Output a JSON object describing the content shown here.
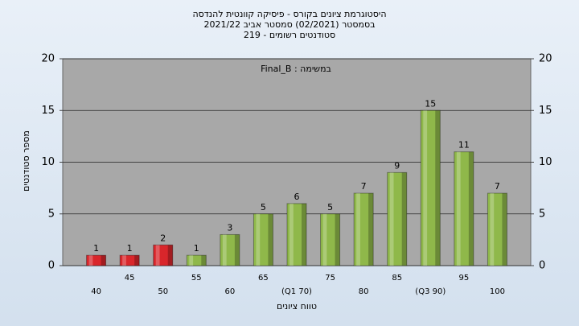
{
  "chart_data": {
    "type": "bar",
    "title": [
      "היסטוגרמת ציונים בקורס - פיסיקה קוונטית להנדסה",
      "בסמסטר  (02/2021)  סמסטר אביב 2021/22",
      "סטודנטים רשומים - 219"
    ],
    "annotation": "במשימה : Final_B",
    "x_label": "טווח ציונים",
    "y_label": "מספר סטודנטים",
    "categories": [
      "40",
      "45",
      "50",
      "55",
      "60",
      "65",
      "(Q1 70)",
      "75",
      "80",
      "85",
      "(Q3 90)",
      "95",
      "100"
    ],
    "values": [
      1,
      1,
      2,
      1,
      3,
      5,
      6,
      5,
      7,
      9,
      15,
      11,
      7
    ],
    "colors": [
      "#d9262b",
      "#d9262b",
      "#d9262b",
      "#8fb84a",
      "#8fb84a",
      "#8fb84a",
      "#8fb84a",
      "#8fb84a",
      "#8fb84a",
      "#8fb84a",
      "#8fb84a",
      "#8fb84a",
      "#8fb84a"
    ],
    "ylim": [
      0,
      20
    ],
    "yticks": [
      0,
      5,
      10,
      15,
      20
    ],
    "y2lim": [
      0,
      20
    ],
    "y2ticks": [
      0,
      5,
      10,
      15,
      20
    ],
    "grid": true
  }
}
